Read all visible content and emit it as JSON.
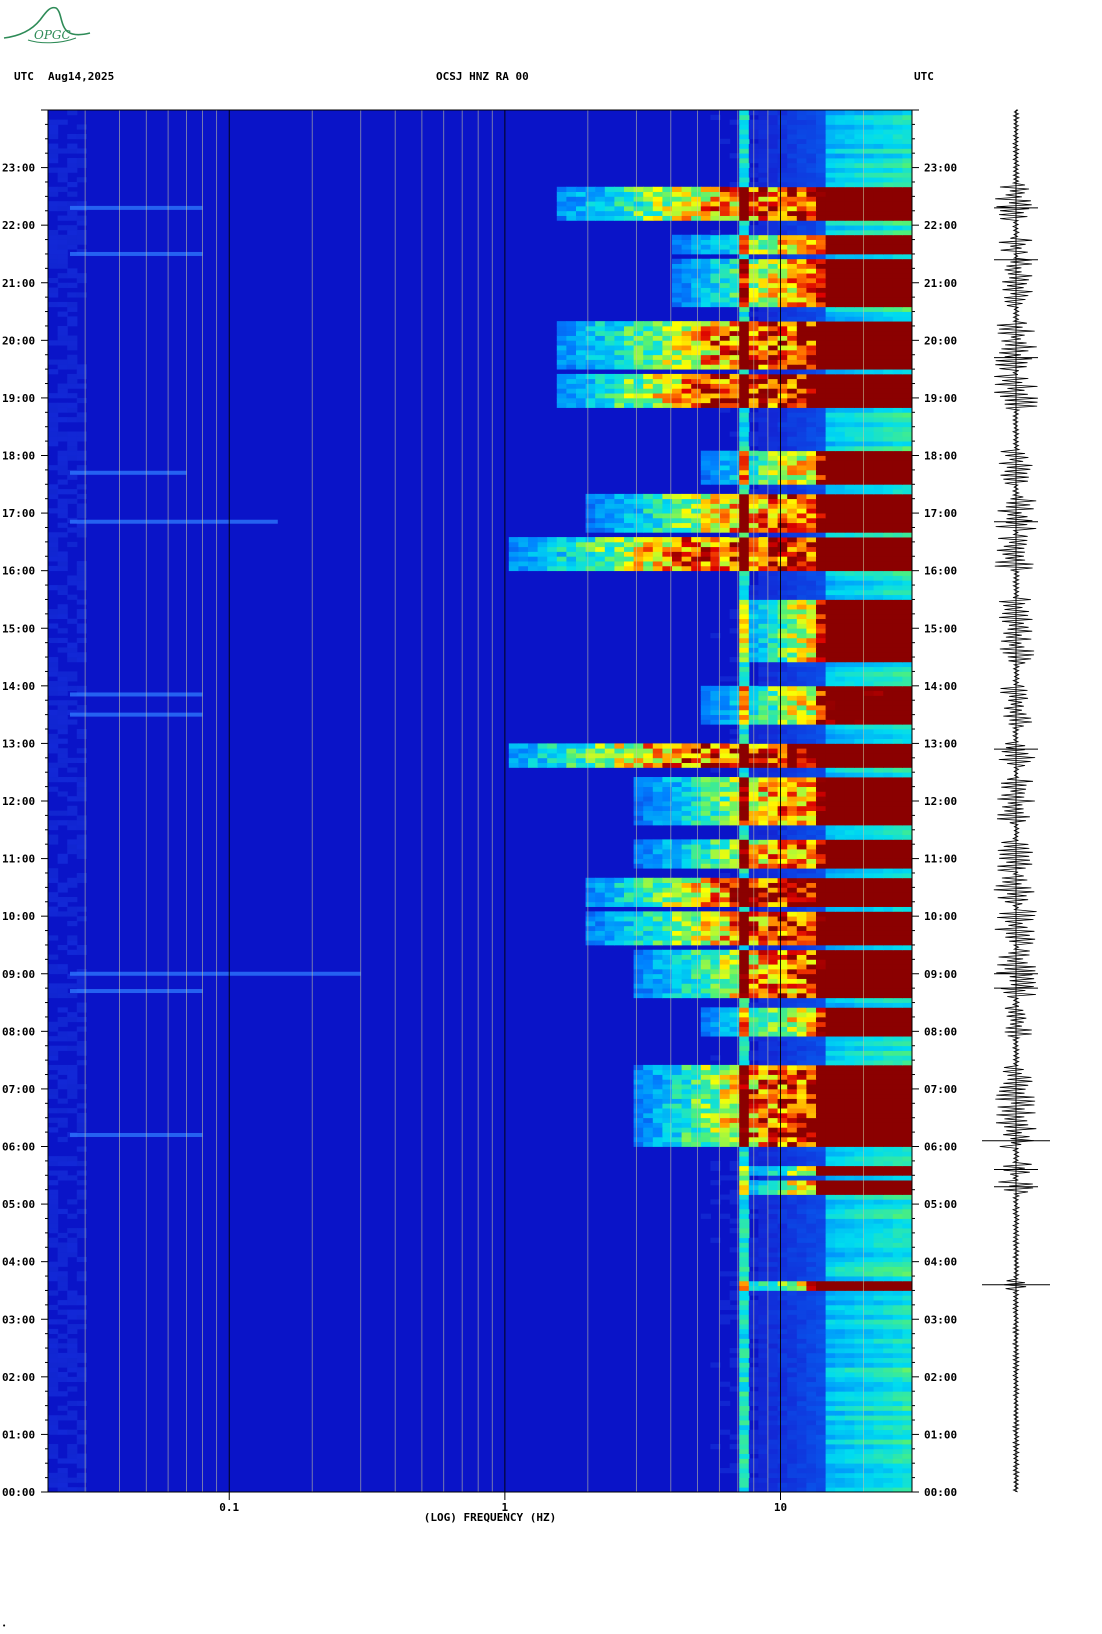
{
  "header": {
    "left_tz": "UTC",
    "date": "Aug14,2025",
    "station": "OCSJ HNZ RA 00",
    "right_tz": "UTC"
  },
  "logo": {
    "text": "OPGC",
    "color": "#2e8b57"
  },
  "colors": {
    "background_low": "#0a14c8",
    "mid": "#00c8ff",
    "high": "#ffff00",
    "peak": "#8b0000",
    "grid_major": "#000000",
    "grid_minor": "#c8c8a0"
  },
  "chart_data": {
    "type": "heatmap",
    "title": "OCSJ HNZ RA 00",
    "xlabel": "(LOG) FREQUENCY (HZ)",
    "xscale": "log",
    "xlim": [
      0.022,
      30
    ],
    "x_ticks": [
      {
        "value": 0.1,
        "label": "0.1"
      },
      {
        "value": 1,
        "label": "1"
      },
      {
        "value": 10,
        "label": "10"
      }
    ],
    "ylim_hours": [
      0,
      24
    ],
    "y_ticks": [
      "00:00",
      "01:00",
      "02:00",
      "03:00",
      "04:00",
      "05:00",
      "06:00",
      "07:00",
      "08:00",
      "09:00",
      "10:00",
      "11:00",
      "12:00",
      "13:00",
      "14:00",
      "15:00",
      "16:00",
      "17:00",
      "18:00",
      "19:00",
      "20:00",
      "21:00",
      "22:00",
      "23:00"
    ],
    "persistent_lines_hz": [
      7.3,
      17
    ],
    "noise_onset_hz": 15,
    "activity_bursts": [
      {
        "start": 3.5,
        "end": 3.7,
        "intensity": 0.85,
        "fmin": 7
      },
      {
        "start": 5.2,
        "end": 5.4,
        "intensity": 0.8,
        "fmin": 7
      },
      {
        "start": 5.5,
        "end": 5.7,
        "intensity": 0.7,
        "fmin": 7
      },
      {
        "start": 6.0,
        "end": 7.4,
        "intensity": 0.9,
        "fmin": 3
      },
      {
        "start": 7.9,
        "end": 8.4,
        "intensity": 0.7,
        "fmin": 5
      },
      {
        "start": 8.6,
        "end": 9.4,
        "intensity": 0.85,
        "fmin": 3
      },
      {
        "start": 9.5,
        "end": 10.1,
        "intensity": 0.9,
        "fmin": 2
      },
      {
        "start": 10.2,
        "end": 10.7,
        "intensity": 1.0,
        "fmin": 2
      },
      {
        "start": 10.8,
        "end": 11.3,
        "intensity": 0.8,
        "fmin": 3
      },
      {
        "start": 11.6,
        "end": 12.4,
        "intensity": 0.8,
        "fmin": 3
      },
      {
        "start": 12.6,
        "end": 13.0,
        "intensity": 1.0,
        "fmin": 1
      },
      {
        "start": 13.3,
        "end": 14.0,
        "intensity": 0.65,
        "fmin": 5
      },
      {
        "start": 14.4,
        "end": 15.5,
        "intensity": 0.75,
        "fmin": 7
      },
      {
        "start": 16.0,
        "end": 16.6,
        "intensity": 0.95,
        "fmin": 1
      },
      {
        "start": 16.7,
        "end": 17.3,
        "intensity": 0.85,
        "fmin": 2
      },
      {
        "start": 17.5,
        "end": 18.1,
        "intensity": 0.7,
        "fmin": 5
      },
      {
        "start": 18.8,
        "end": 19.4,
        "intensity": 1.0,
        "fmin": 1.5
      },
      {
        "start": 19.5,
        "end": 20.3,
        "intensity": 0.9,
        "fmin": 1.5
      },
      {
        "start": 20.6,
        "end": 21.4,
        "intensity": 0.75,
        "fmin": 4
      },
      {
        "start": 21.5,
        "end": 21.8,
        "intensity": 0.7,
        "fmin": 4
      },
      {
        "start": 22.1,
        "end": 22.7,
        "intensity": 0.9,
        "fmin": 1.5
      }
    ],
    "low_freq_streaks": [
      {
        "hour": 17.7,
        "fmax": 0.07
      },
      {
        "hour": 16.85,
        "fmax": 0.15
      },
      {
        "hour": 13.85,
        "fmax": 0.08
      },
      {
        "hour": 13.5,
        "fmax": 0.08
      },
      {
        "hour": 9.0,
        "fmax": 0.3
      },
      {
        "hour": 8.7,
        "fmax": 0.08
      },
      {
        "hour": 6.2,
        "fmax": 0.08
      },
      {
        "hour": 21.5,
        "fmax": 0.08
      },
      {
        "hour": 22.3,
        "fmax": 0.08
      }
    ]
  }
}
